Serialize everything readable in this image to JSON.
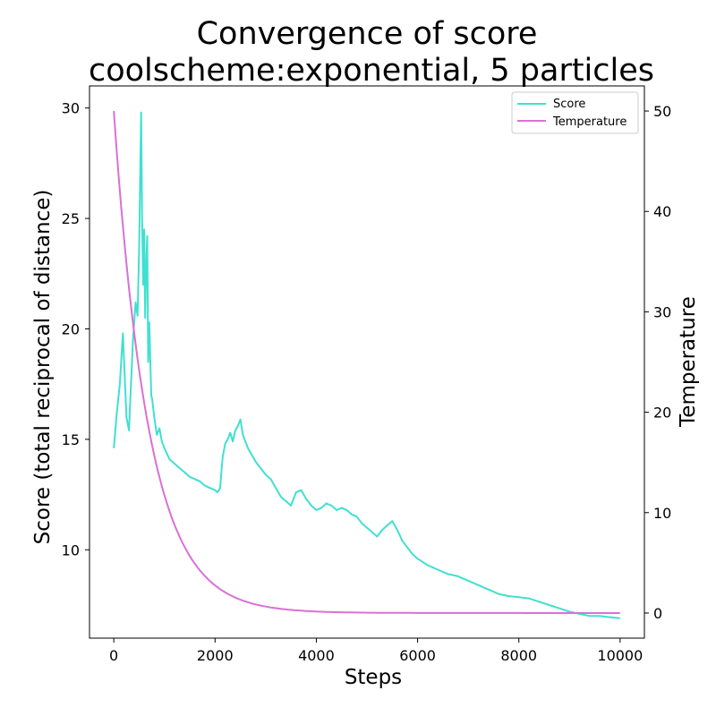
{
  "chart_data": {
    "type": "line",
    "title": "Convergence of score",
    "subtitle": "coolscheme:exponential, 5 particles",
    "xlabel": "Steps",
    "ylabel_left": "Score (total reciprocal of distance)",
    "ylabel_right": "Temperature",
    "xlim": [
      -480,
      10480
    ],
    "ylim_left": [
      6.0,
      31.0
    ],
    "ylim_right": [
      -2.5,
      52.5
    ],
    "x_ticks": [
      0,
      2000,
      4000,
      6000,
      8000,
      10000
    ],
    "y_ticks_left": [
      10,
      15,
      20,
      25,
      30
    ],
    "y_ticks_right": [
      0,
      10,
      20,
      30,
      40,
      50
    ],
    "grid": false,
    "legend_position": "top-right",
    "series": [
      {
        "name": "Score",
        "axis": "left",
        "color": "#40e0d0",
        "x": [
          0,
          60,
          120,
          180,
          250,
          300,
          330,
          380,
          430,
          470,
          500,
          540,
          560,
          580,
          600,
          620,
          640,
          660,
          680,
          700,
          740,
          760,
          800,
          850,
          900,
          950,
          1000,
          1100,
          1200,
          1300,
          1400,
          1500,
          1600,
          1700,
          1800,
          1900,
          2000,
          2050,
          2100,
          2150,
          2200,
          2250,
          2300,
          2350,
          2400,
          2450,
          2500,
          2550,
          2600,
          2650,
          2700,
          2800,
          2900,
          3000,
          3100,
          3200,
          3300,
          3400,
          3500,
          3600,
          3700,
          3800,
          3900,
          4000,
          4100,
          4200,
          4300,
          4400,
          4500,
          4600,
          4700,
          4800,
          4900,
          5000,
          5100,
          5200,
          5300,
          5400,
          5500,
          5600,
          5700,
          5800,
          5900,
          6000,
          6200,
          6400,
          6600,
          6800,
          6900,
          7000,
          7200,
          7400,
          7600,
          7800,
          8000,
          8200,
          8400,
          8600,
          8800,
          9000,
          9200,
          9400,
          9600,
          9800,
          10000
        ],
        "values": [
          14.6,
          16.2,
          17.5,
          19.8,
          16.0,
          15.4,
          17.0,
          19.5,
          21.2,
          20.6,
          23.5,
          29.8,
          24.8,
          22.0,
          24.5,
          20.5,
          23.0,
          24.2,
          18.5,
          20.3,
          17.0,
          16.8,
          16.0,
          15.2,
          15.5,
          14.9,
          14.6,
          14.1,
          13.9,
          13.7,
          13.5,
          13.3,
          13.2,
          13.1,
          12.9,
          12.8,
          12.7,
          12.6,
          12.8,
          14.2,
          14.8,
          15.0,
          15.3,
          14.9,
          15.4,
          15.6,
          15.9,
          15.2,
          14.9,
          14.6,
          14.4,
          14.0,
          13.7,
          13.4,
          13.2,
          12.8,
          12.4,
          12.2,
          12.0,
          12.6,
          12.7,
          12.3,
          12.0,
          11.8,
          11.9,
          12.1,
          12.0,
          11.8,
          11.9,
          11.8,
          11.6,
          11.5,
          11.2,
          11.0,
          10.8,
          10.6,
          10.9,
          11.1,
          11.3,
          10.9,
          10.4,
          10.1,
          9.8,
          9.6,
          9.3,
          9.1,
          8.9,
          8.8,
          8.7,
          8.6,
          8.4,
          8.2,
          8.0,
          7.9,
          7.85,
          7.8,
          7.65,
          7.5,
          7.35,
          7.2,
          7.1,
          7.0,
          7.0,
          6.95,
          6.9
        ]
      },
      {
        "name": "Temperature",
        "axis": "right",
        "color": "#da70d6",
        "function": "exponential",
        "initial": 50,
        "decay_per_step": 0.00145,
        "x_start": 0,
        "x_end": 10000
      }
    ]
  }
}
